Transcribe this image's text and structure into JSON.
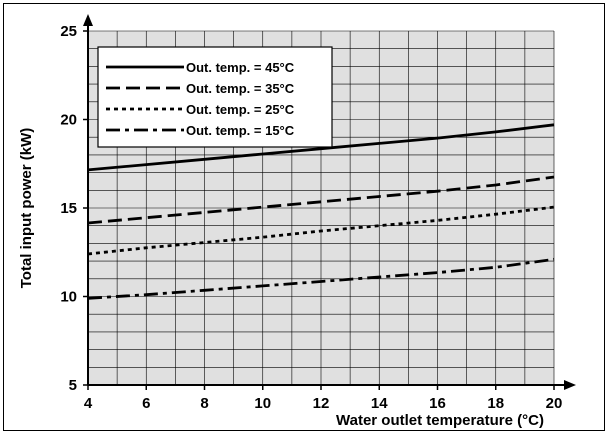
{
  "chart_data": {
    "type": "line",
    "xlabel": "Water outlet temperature  (°C)",
    "ylabel": "Total input power  (kW)",
    "xlim": [
      4,
      20
    ],
    "ylim": [
      5,
      25
    ],
    "x_ticks": [
      "4",
      "6",
      "8",
      "10",
      "12",
      "14",
      "16",
      "18",
      "20"
    ],
    "y_ticks": [
      "5",
      "10",
      "15",
      "20",
      "25"
    ],
    "grid": true,
    "legend_position": "top-left",
    "colors": {
      "plot_background": "#e0e0e0",
      "grid": "#000000",
      "line": "#000000"
    },
    "series": [
      {
        "name": "Out. temp. = 45°C",
        "dash": "solid",
        "x": [
          4,
          6,
          8,
          10,
          12,
          14,
          16,
          18,
          20
        ],
        "y": [
          17.15,
          17.45,
          17.75,
          18.05,
          18.35,
          18.65,
          18.95,
          19.3,
          19.7
        ]
      },
      {
        "name": "Out. temp. = 35°C",
        "dash": "dashed",
        "x": [
          4,
          6,
          8,
          10,
          12,
          14,
          16,
          18,
          20
        ],
        "y": [
          14.15,
          14.45,
          14.75,
          15.05,
          15.35,
          15.65,
          15.95,
          16.3,
          16.75
        ]
      },
      {
        "name": "Out. temp. = 25°C",
        "dash": "dotted",
        "x": [
          4,
          6,
          8,
          10,
          12,
          14,
          16,
          18,
          20
        ],
        "y": [
          12.4,
          12.75,
          13.05,
          13.35,
          13.7,
          14.0,
          14.3,
          14.65,
          15.05
        ]
      },
      {
        "name": "Out. temp. = 15°C",
        "dash": "dashdot",
        "x": [
          4,
          6,
          8,
          10,
          12,
          14,
          16,
          18,
          20
        ],
        "y": [
          9.9,
          10.1,
          10.35,
          10.6,
          10.85,
          11.1,
          11.35,
          11.65,
          12.1
        ]
      }
    ]
  }
}
